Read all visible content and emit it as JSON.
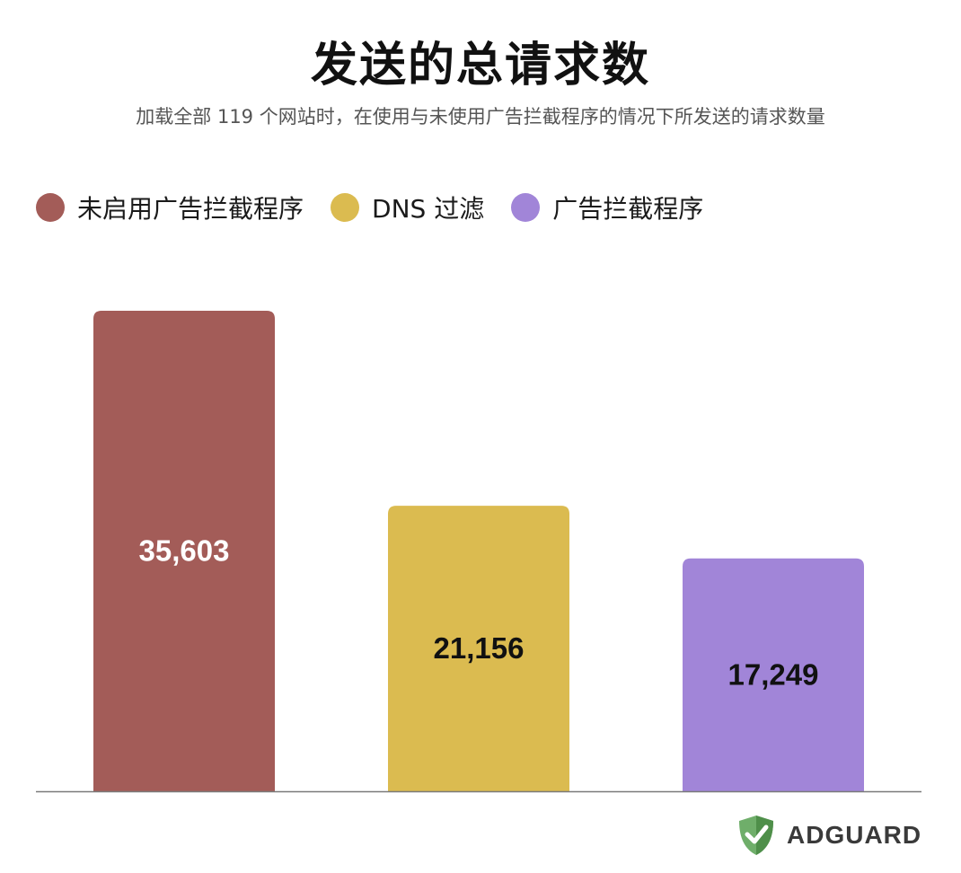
{
  "colors": {
    "no_adblock": "#a35c58",
    "dns_filtering": "#dbbb50",
    "adblocker": "#a185d8",
    "axis": "#7a7a7a",
    "brand_green": "#6fae6a"
  },
  "brand": {
    "name": "ADGUARD",
    "icon": "shield-check-icon"
  },
  "chart_data": {
    "type": "bar",
    "title": "发送的总请求数",
    "subtitle": "加载全部 119 个网站时，在使用与未使用广告拦截程序的情况下所发送的请求数量",
    "categories": [
      "未启用广告拦截程序",
      "DNS 过滤",
      "广告拦截程序"
    ],
    "values": [
      35603,
      21156,
      17249
    ],
    "value_labels": [
      "35,603",
      "21,156",
      "17,249"
    ],
    "legend": [
      "未启用广告拦截程序",
      "DNS 过滤",
      "广告拦截程序"
    ],
    "legend_position": "top-left",
    "ylim": [
      0,
      40000
    ],
    "grid": false,
    "xlabel": "",
    "ylabel": ""
  }
}
